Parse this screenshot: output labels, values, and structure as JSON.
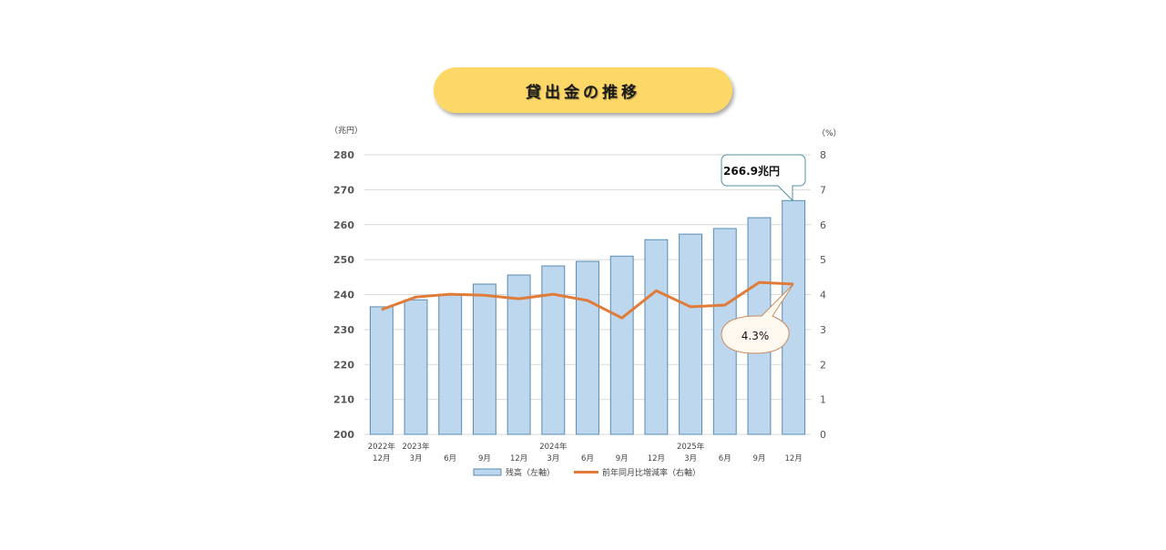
{
  "title": "貸出金の推移",
  "chart_data": {
    "type": "bar",
    "title": "貸出金の推移",
    "categories": [
      "2022年12月",
      "2023年3月",
      "6月",
      "9月",
      "12月",
      "2024年3月",
      "6月",
      "9月",
      "12月",
      "2025年3月",
      "6月",
      "9月",
      "12月"
    ],
    "x_labels": [
      {
        "year": "2022年",
        "month": "12月"
      },
      {
        "year": "2023年",
        "month": "3月"
      },
      {
        "year": "",
        "month": "6月"
      },
      {
        "year": "",
        "month": "9月"
      },
      {
        "year": "",
        "month": "12月"
      },
      {
        "year": "2024年",
        "month": "3月"
      },
      {
        "year": "",
        "month": "6月"
      },
      {
        "year": "",
        "month": "9月"
      },
      {
        "year": "",
        "month": "12月"
      },
      {
        "year": "2025年",
        "month": "3月"
      },
      {
        "year": "",
        "month": "6月"
      },
      {
        "year": "",
        "month": "9月"
      },
      {
        "year": "",
        "month": "12月"
      }
    ],
    "series": [
      {
        "name": "残高（左軸）",
        "type": "bar",
        "axis": "left",
        "color": "#bdd7ee",
        "edge": "#5a8bb0",
        "values": [
          236.5,
          238.5,
          240.1,
          243.0,
          245.6,
          248.2,
          249.5,
          251.0,
          255.7,
          257.3,
          258.9,
          262.0,
          266.9
        ]
      },
      {
        "name": "前年同月比増減率（右軸）",
        "type": "line",
        "axis": "right",
        "color": "#e07b39",
        "values": [
          3.57,
          3.93,
          4.01,
          3.98,
          3.88,
          4.01,
          3.83,
          3.33,
          4.11,
          3.65,
          3.7,
          4.35,
          4.3
        ]
      }
    ],
    "ylabel_left": "（兆円）",
    "ylabel_right": "（%）",
    "ylim_left": [
      200,
      280
    ],
    "ylim_right": [
      0,
      8
    ],
    "yticks_left": [
      200,
      210,
      220,
      230,
      240,
      250,
      260,
      270,
      280
    ],
    "yticks_right": [
      0,
      1,
      2,
      3,
      4,
      5,
      6,
      7,
      8
    ],
    "grid": true,
    "legend_position": "bottom",
    "annotations": [
      {
        "text": "266.9兆円",
        "target": "残高 2025年12月",
        "shape": "rounded-rect-callout"
      },
      {
        "text": "4.3%",
        "target": "前年同月比 2025年12月",
        "shape": "oval-callout"
      }
    ]
  }
}
